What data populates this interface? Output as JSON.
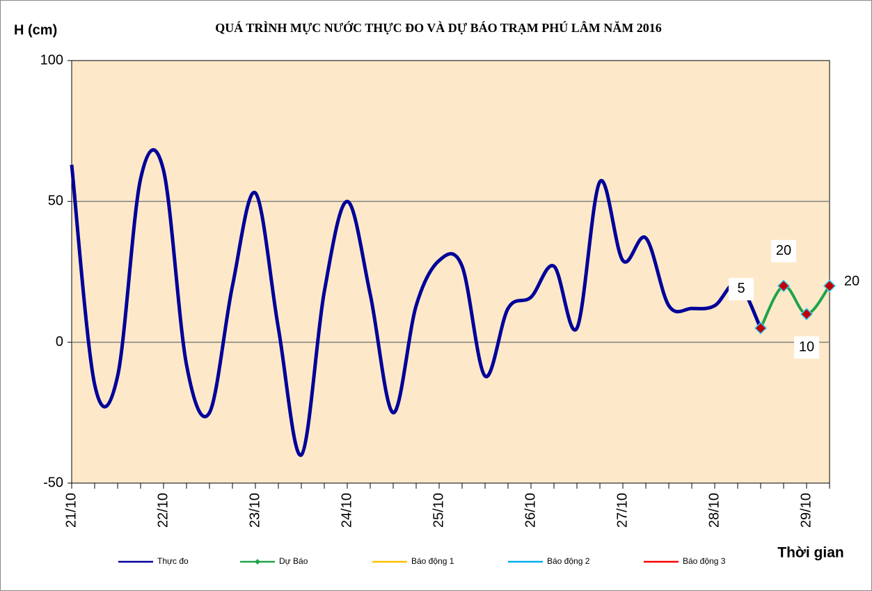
{
  "chart_data": {
    "type": "line",
    "title": "QUÁ TRÌNH MỰC NƯỚC THỰC ĐO VÀ DỰ BÁO TRẠM  PHÚ LÂM NĂM 2016",
    "y_label": "H (cm)",
    "x_label": "Thời gian",
    "categories": [
      "21/10",
      null,
      null,
      null,
      "22/10",
      null,
      null,
      null,
      "23/10",
      null,
      null,
      null,
      "24/10",
      null,
      null,
      null,
      "25/10",
      null,
      null,
      null,
      "26/10",
      null,
      null,
      null,
      "27/10",
      null,
      null,
      null,
      "28/10",
      null,
      null,
      null,
      "29/10",
      null
    ],
    "series": [
      {
        "name": "Thực đo",
        "color": "#000099",
        "values": [
          63,
          -15,
          -12,
          58,
          61,
          -8,
          -25,
          20,
          53,
          5,
          -40,
          18,
          50,
          17,
          -25,
          13,
          29,
          27,
          -12,
          12,
          16,
          27,
          5,
          57,
          29,
          37,
          13,
          12,
          13,
          21,
          5,
          null,
          null,
          null
        ]
      },
      {
        "name": "Dự Báo",
        "color": "#1fa34a",
        "values": [
          null,
          null,
          null,
          null,
          null,
          null,
          null,
          null,
          null,
          null,
          null,
          null,
          null,
          null,
          null,
          null,
          null,
          null,
          null,
          null,
          null,
          null,
          null,
          null,
          null,
          null,
          null,
          null,
          null,
          null,
          5,
          20,
          10,
          20
        ]
      },
      {
        "name": "Báo động 1",
        "color": "#ffc000",
        "values": [
          null,
          null,
          null,
          null,
          null,
          null,
          null,
          null,
          null,
          null,
          null,
          null,
          null,
          null,
          null,
          null,
          null,
          null,
          null,
          null,
          null,
          null,
          null,
          null,
          null,
          null,
          null,
          null,
          null,
          null,
          null,
          null,
          null,
          null
        ]
      },
      {
        "name": "Báo động 2",
        "color": "#00b0f0",
        "values": [
          null,
          null,
          null,
          null,
          null,
          null,
          null,
          null,
          null,
          null,
          null,
          null,
          null,
          null,
          null,
          null,
          null,
          null,
          null,
          null,
          null,
          null,
          null,
          null,
          null,
          null,
          null,
          null,
          null,
          null,
          null,
          null,
          null,
          null
        ]
      },
      {
        "name": "Báo động 3",
        "color": "#ff0000",
        "values": [
          null,
          null,
          null,
          null,
          null,
          null,
          null,
          null,
          null,
          null,
          null,
          null,
          null,
          null,
          null,
          null,
          null,
          null,
          null,
          null,
          null,
          null,
          null,
          null,
          null,
          null,
          null,
          null,
          null,
          null,
          null,
          null,
          null,
          null
        ]
      }
    ],
    "ylim": [
      -50,
      100
    ],
    "yticks": [
      -50,
      0,
      50,
      100
    ],
    "grid": true
  }
}
